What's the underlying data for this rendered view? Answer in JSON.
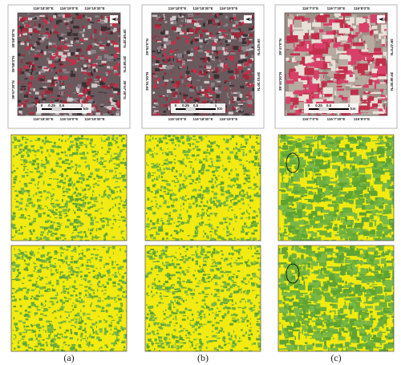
{
  "panels": [
    {
      "top_labels": [
        "116°18'30\"E",
        "116°19'0\"E",
        "116°19'30\"E"
      ],
      "bottom_labels": [
        "116°18'30\"E",
        "116°19'0\"E",
        "116°19'30\"E"
      ],
      "left_labels": [
        "39°58'30\"N",
        "39°58'0\"N",
        "39°57'30\"N"
      ],
      "right_labels": [
        "39°58'30\"N",
        "39°58'0\"N",
        "39°57'30\"N"
      ],
      "scale": [
        "0",
        "0.25",
        "0.5",
        "1"
      ],
      "unit": "km",
      "north": "N",
      "caption": "(a)"
    },
    {
      "top_labels": [
        "116°18'0\"E",
        "116°18'30\"E",
        "116°19'0\"E"
      ],
      "bottom_labels": [
        "116°18'0\"E",
        "116°18'30\"E",
        "116°19'0\"E"
      ],
      "left_labels": [
        "39°52'0\"N",
        "39°51'30\"N"
      ],
      "right_labels": [
        "39°52'0\"N",
        "39°51'30\"N"
      ],
      "scale": [
        "0",
        "0.25",
        "0.5",
        "1"
      ],
      "unit": "km",
      "north": "N",
      "caption": "(b)"
    },
    {
      "top_labels": [
        "116°7'0\"E",
        "116°7'30\"E",
        "116°8'0\"E"
      ],
      "bottom_labels": [
        "116°7'0\"E",
        "116°7'30\"E",
        "116°8'0\"E"
      ],
      "left_labels": [
        "39°47'0\"N",
        "39°46'30\"N"
      ],
      "right_labels": [
        "39°47'0\"N",
        "39°46'30\"N"
      ],
      "scale": [
        "0",
        "0.25",
        "0.5",
        "1"
      ],
      "unit": "km",
      "north": "N",
      "caption": "(c)"
    }
  ]
}
